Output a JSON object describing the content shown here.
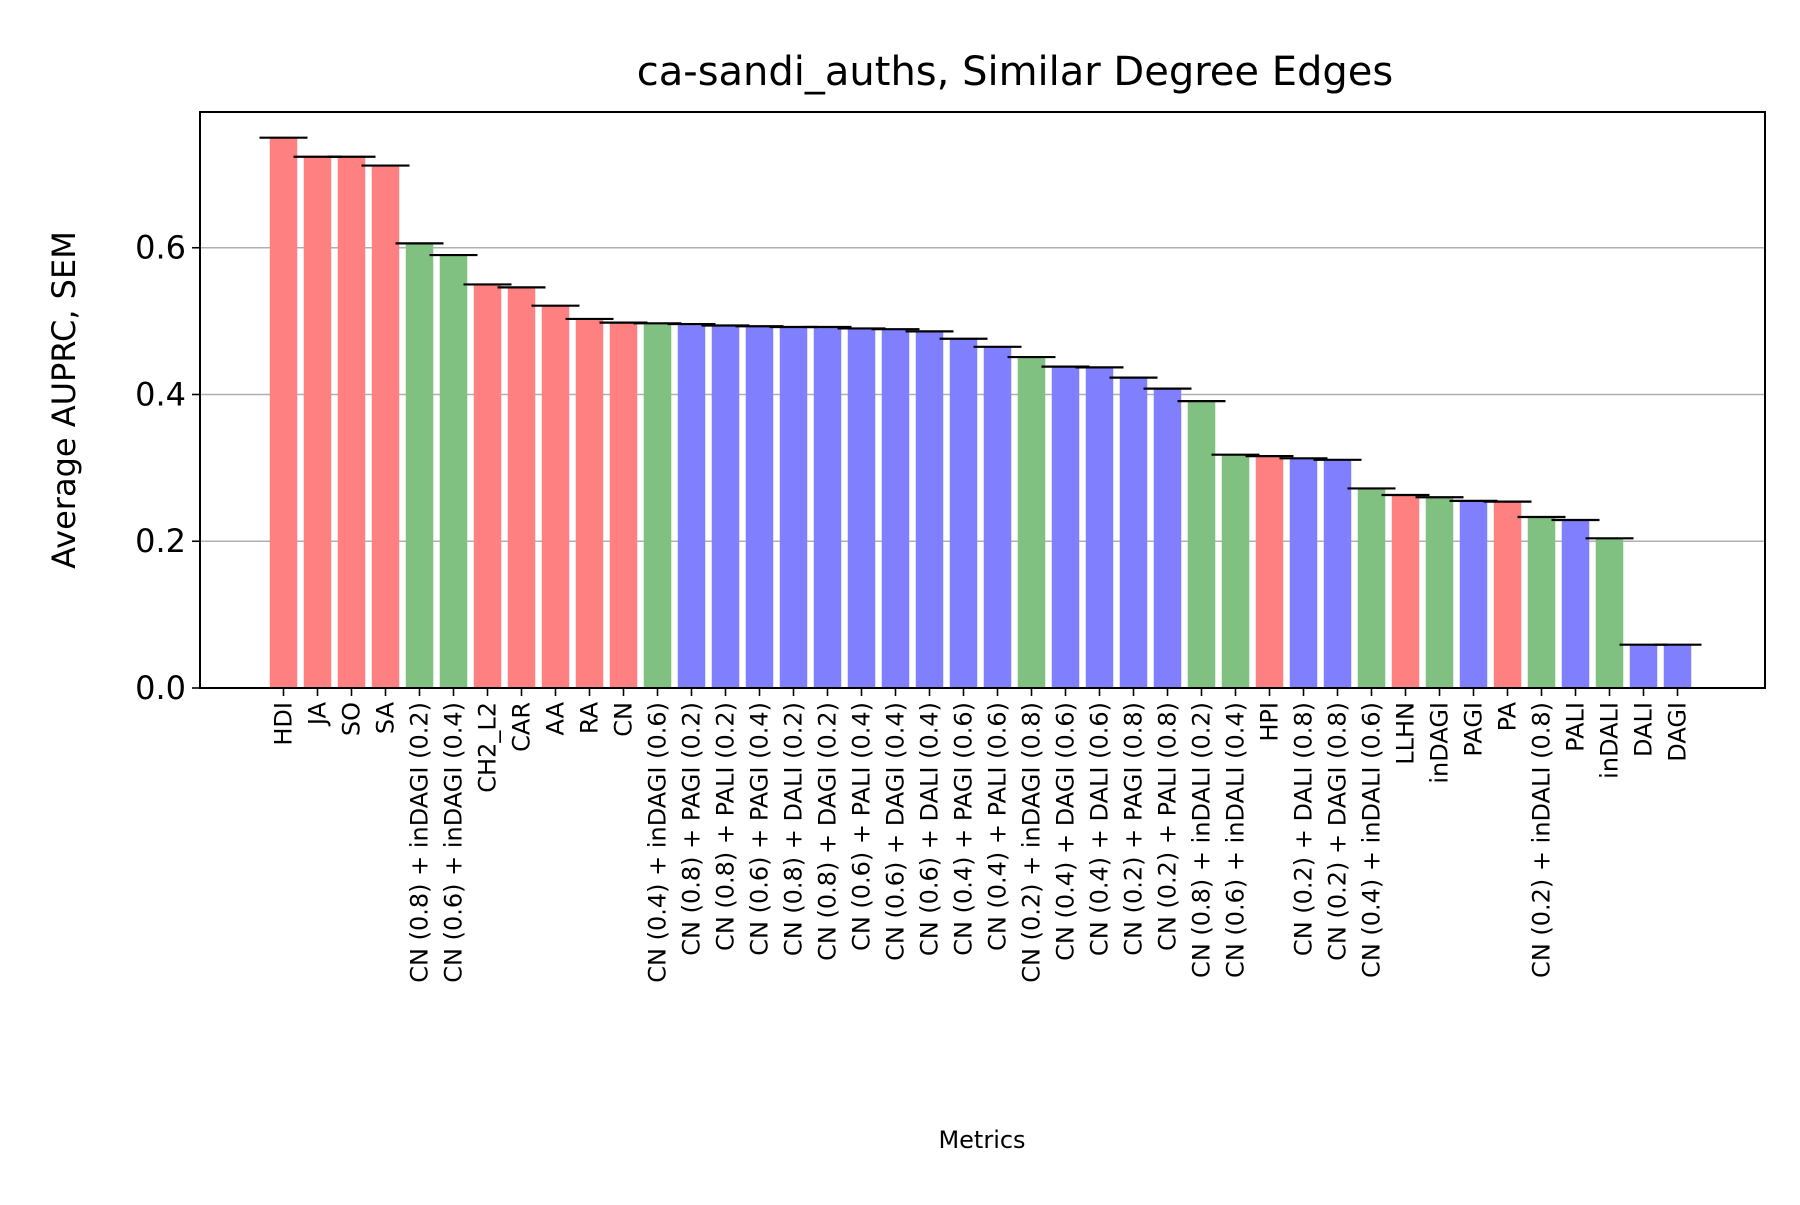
{
  "chart_data": {
    "type": "bar",
    "title": "ca-sandi_auths, Similar Degree Edges",
    "xlabel": "Metrics",
    "ylabel": "Average AUPRC, SEM",
    "ylim": [
      0,
      0.785
    ],
    "yticks": [
      "0.0",
      "0.2",
      "0.4",
      "0.6"
    ],
    "ytick_values": [
      0.0,
      0.2,
      0.4,
      0.6
    ],
    "grid": "y",
    "colors": {
      "red": "#ff8080",
      "green": "#80c080",
      "blue": "#8080ff",
      "error": "#000000",
      "grid": "#b0b0b0"
    },
    "bars": [
      {
        "label": "HDI",
        "value": 0.75,
        "color": "red"
      },
      {
        "label": "JA",
        "value": 0.724,
        "color": "red"
      },
      {
        "label": "SO",
        "value": 0.724,
        "color": "red"
      },
      {
        "label": "SA",
        "value": 0.712,
        "color": "red"
      },
      {
        "label": "CN (0.8) + inDAGI (0.2)",
        "value": 0.606,
        "color": "green"
      },
      {
        "label": "CN (0.6) + inDAGI (0.4)",
        "value": 0.59,
        "color": "green"
      },
      {
        "label": "CH2_L2",
        "value": 0.55,
        "color": "red"
      },
      {
        "label": "CAR",
        "value": 0.546,
        "color": "red"
      },
      {
        "label": "AA",
        "value": 0.521,
        "color": "red"
      },
      {
        "label": "RA",
        "value": 0.503,
        "color": "red"
      },
      {
        "label": "CN",
        "value": 0.498,
        "color": "red"
      },
      {
        "label": "CN (0.4) + inDAGI (0.6)",
        "value": 0.497,
        "color": "green"
      },
      {
        "label": "CN (0.8) + PAGI (0.2)",
        "value": 0.496,
        "color": "blue"
      },
      {
        "label": "CN (0.8) + PALI (0.2)",
        "value": 0.494,
        "color": "blue"
      },
      {
        "label": "CN (0.6) + PAGI (0.4)",
        "value": 0.493,
        "color": "blue"
      },
      {
        "label": "CN (0.8) + DALI (0.2)",
        "value": 0.492,
        "color": "blue"
      },
      {
        "label": "CN (0.8) + DAGI (0.2)",
        "value": 0.492,
        "color": "blue"
      },
      {
        "label": "CN (0.6) + PALI (0.4)",
        "value": 0.49,
        "color": "blue"
      },
      {
        "label": "CN (0.6) + DAGI (0.4)",
        "value": 0.489,
        "color": "blue"
      },
      {
        "label": "CN (0.6) + DALI (0.4)",
        "value": 0.486,
        "color": "blue"
      },
      {
        "label": "CN (0.4) + PAGI (0.6)",
        "value": 0.476,
        "color": "blue"
      },
      {
        "label": "CN (0.4) + PALI (0.6)",
        "value": 0.465,
        "color": "blue"
      },
      {
        "label": "CN (0.2) + inDAGI (0.8)",
        "value": 0.451,
        "color": "green"
      },
      {
        "label": "CN (0.4) + DAGI (0.6)",
        "value": 0.438,
        "color": "blue"
      },
      {
        "label": "CN (0.4) + DALI (0.6)",
        "value": 0.437,
        "color": "blue"
      },
      {
        "label": "CN (0.2) + PAGI (0.8)",
        "value": 0.423,
        "color": "blue"
      },
      {
        "label": "CN (0.2) + PALI (0.8)",
        "value": 0.408,
        "color": "blue"
      },
      {
        "label": "CN (0.8) + inDALI (0.2)",
        "value": 0.391,
        "color": "green"
      },
      {
        "label": "CN (0.6) + inDALI (0.4)",
        "value": 0.318,
        "color": "green"
      },
      {
        "label": "HPI",
        "value": 0.316,
        "color": "red"
      },
      {
        "label": "CN (0.2) + DALI (0.8)",
        "value": 0.313,
        "color": "blue"
      },
      {
        "label": "CN (0.2) + DAGI (0.8)",
        "value": 0.311,
        "color": "blue"
      },
      {
        "label": "CN (0.4) + inDALI (0.6)",
        "value": 0.272,
        "color": "green"
      },
      {
        "label": "LLHN",
        "value": 0.263,
        "color": "red"
      },
      {
        "label": "inDAGI",
        "value": 0.26,
        "color": "green"
      },
      {
        "label": "PAGI",
        "value": 0.255,
        "color": "blue"
      },
      {
        "label": "PA",
        "value": 0.254,
        "color": "red"
      },
      {
        "label": "CN (0.2) + inDALI (0.8)",
        "value": 0.233,
        "color": "green"
      },
      {
        "label": "PALI",
        "value": 0.229,
        "color": "blue"
      },
      {
        "label": "inDALI",
        "value": 0.204,
        "color": "green"
      },
      {
        "label": "DALI",
        "value": 0.059,
        "color": "blue"
      },
      {
        "label": "DAGI",
        "value": 0.059,
        "color": "blue"
      }
    ]
  }
}
